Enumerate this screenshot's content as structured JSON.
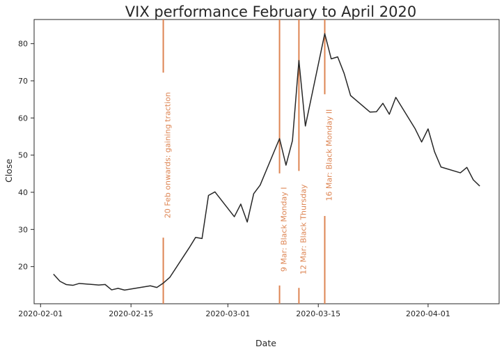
{
  "chart_data": {
    "type": "line",
    "title": "VIX performance February to April 2020",
    "xlabel": "Date",
    "ylabel": "Close",
    "xlim": [
      "2020-01-31",
      "2020-04-12"
    ],
    "ylim": [
      10,
      86.5
    ],
    "x_ticks": [
      "2020-02-01",
      "2020-02-15",
      "2020-03-01",
      "2020-03-15",
      "2020-04-01"
    ],
    "y_ticks": [
      20,
      30,
      40,
      50,
      60,
      70,
      80
    ],
    "grid": false,
    "line_color": "#262626",
    "annotation_color": "#dd8452",
    "series": [
      {
        "x": [
          "2020-02-03",
          "2020-02-04",
          "2020-02-05",
          "2020-02-06",
          "2020-02-07",
          "2020-02-10",
          "2020-02-11",
          "2020-02-12",
          "2020-02-13",
          "2020-02-14",
          "2020-02-18",
          "2020-02-19",
          "2020-02-20",
          "2020-02-21",
          "2020-02-24",
          "2020-02-25",
          "2020-02-26",
          "2020-02-27",
          "2020-02-28",
          "2020-03-02",
          "2020-03-03",
          "2020-03-04",
          "2020-03-05",
          "2020-03-06",
          "2020-03-09",
          "2020-03-10",
          "2020-03-11",
          "2020-03-12",
          "2020-03-13",
          "2020-03-16",
          "2020-03-17",
          "2020-03-18",
          "2020-03-19",
          "2020-03-20",
          "2020-03-23",
          "2020-03-24",
          "2020-03-25",
          "2020-03-26",
          "2020-03-27",
          "2020-03-30",
          "2020-03-31",
          "2020-04-01",
          "2020-04-02",
          "2020-04-03",
          "2020-04-06",
          "2020-04-07",
          "2020-04-08",
          "2020-04-09"
        ],
        "values": [
          17.97,
          16.05,
          15.15,
          14.96,
          15.47,
          15.04,
          15.18,
          13.74,
          14.15,
          13.68,
          14.83,
          14.38,
          15.56,
          17.08,
          25.03,
          27.85,
          27.56,
          39.16,
          40.11,
          33.42,
          36.82,
          31.99,
          39.62,
          41.94,
          54.46,
          47.3,
          53.9,
          75.47,
          57.83,
          82.69,
          75.91,
          76.45,
          72.0,
          66.04,
          61.59,
          61.67,
          63.95,
          61.0,
          65.54,
          57.08,
          53.54,
          57.06,
          50.91,
          46.8,
          45.24,
          46.7,
          43.35,
          41.67
        ]
      }
    ],
    "annotations": [
      {
        "date": "2020-02-20",
        "label": "20 Feb onwards: gaining traction",
        "label_center": 50
      },
      {
        "date": "2020-03-09",
        "label": "9 Mar: Black Monday I",
        "label_center": 30
      },
      {
        "date": "2020-03-12",
        "label": "12 Mar: Black Thursday",
        "label_center": 30
      },
      {
        "date": "2020-03-16",
        "label": "16 Mar: Black Monday II",
        "label_center": 50
      }
    ]
  }
}
